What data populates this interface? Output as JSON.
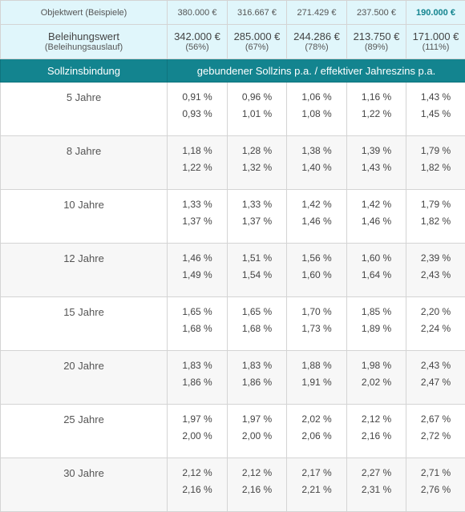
{
  "objekt": {
    "label": "Objektwert (Beispiele)",
    "values": [
      "380.000 €",
      "316.667 €",
      "271.429 €",
      "237.500 €",
      "190.000 €"
    ]
  },
  "beleihung": {
    "label": "Beleihungswert",
    "sublabel": "(Beleihungsauslauf)",
    "values": [
      "342.000 €",
      "285.000 €",
      "244.286 €",
      "213.750 €",
      "171.000 €"
    ],
    "percents": [
      "(56%)",
      "(67%)",
      "(78%)",
      "(89%)",
      "(111%)"
    ]
  },
  "header": {
    "col1": "Sollzinsbindung",
    "col2": "gebundener Sollzins p.a. / effektiver Jahreszins p.a."
  },
  "rows": [
    {
      "label": "5 Jahre",
      "soll": [
        "0,91 %",
        "0,96 %",
        "1,06 %",
        "1,16 %",
        "1,43 %"
      ],
      "eff": [
        "0,93 %",
        "1,01 %",
        "1,08 %",
        "1,22 %",
        "1,45 %"
      ]
    },
    {
      "label": "8 Jahre",
      "soll": [
        "1,18 %",
        "1,28 %",
        "1,38 %",
        "1,39 %",
        "1,79 %"
      ],
      "eff": [
        "1,22 %",
        "1,32 %",
        "1,40 %",
        "1,43 %",
        "1,82 %"
      ]
    },
    {
      "label": "10 Jahre",
      "soll": [
        "1,33 %",
        "1,33 %",
        "1,42 %",
        "1,42 %",
        "1,79 %"
      ],
      "eff": [
        "1,37 %",
        "1,37 %",
        "1,46 %",
        "1,46 %",
        "1,82 %"
      ]
    },
    {
      "label": "12 Jahre",
      "soll": [
        "1,46 %",
        "1,51 %",
        "1,56 %",
        "1,60 %",
        "2,39 %"
      ],
      "eff": [
        "1,49 %",
        "1,54 %",
        "1,60 %",
        "1,64 %",
        "2,43 %"
      ]
    },
    {
      "label": "15 Jahre",
      "soll": [
        "1,65 %",
        "1,65 %",
        "1,70 %",
        "1,85 %",
        "2,20 %"
      ],
      "eff": [
        "1,68 %",
        "1,68 %",
        "1,73 %",
        "1,89 %",
        "2,24 %"
      ]
    },
    {
      "label": "20 Jahre",
      "soll": [
        "1,83 %",
        "1,83 %",
        "1,88 %",
        "1,98 %",
        "2,43 %"
      ],
      "eff": [
        "1,86 %",
        "1,86 %",
        "1,91 %",
        "2,02 %",
        "2,47 %"
      ]
    },
    {
      "label": "25 Jahre",
      "soll": [
        "1,97 %",
        "1,97 %",
        "2,02 %",
        "2,12 %",
        "2,67 %"
      ],
      "eff": [
        "2,00 %",
        "2,00 %",
        "2,06 %",
        "2,16 %",
        "2,72 %"
      ]
    },
    {
      "label": "30 Jahre",
      "soll": [
        "2,12 %",
        "2,12 %",
        "2,17 %",
        "2,27 %",
        "2,71 %"
      ],
      "eff": [
        "2,16 %",
        "2,16 %",
        "2,21 %",
        "2,31 %",
        "2,76 %"
      ]
    }
  ],
  "colors": {
    "header_bg": "#13848f",
    "top_rows_bg": "#e0f6fb",
    "alt_row_bg": "#f7f7f7",
    "highlight_text": "#13848f"
  }
}
